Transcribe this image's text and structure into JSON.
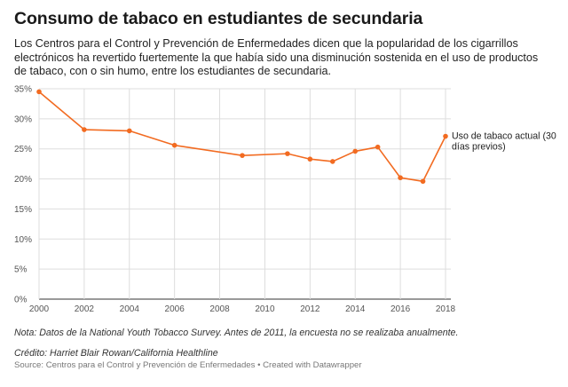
{
  "header": {
    "title": "Consumo de tabaco en estudiantes de secundaria",
    "description": "Los Centros para el Control y Prevención de Enfermedades dicen que la popularidad de los cigarrillos electrónicos ha revertido fuertemente la que había sido una disminución sostenida en el uso de productos de tabaco, con o sin humo, entre los estudiantes de secundaria."
  },
  "footer": {
    "note": "Nota: Datos de la National Youth Tobacco Survey. Antes de 2011, la encuesta no se realizaba anualmente.",
    "credit": "Crédito: Harriet Blair Rowan/California Healthline",
    "source": "Source: Centros para el Control y Prevención de Enfermedades • Created with Datawrapper"
  },
  "chart_data": {
    "type": "line",
    "x": [
      2000,
      2002,
      2004,
      2006,
      2009,
      2011,
      2012,
      2013,
      2014,
      2015,
      2016,
      2017,
      2018
    ],
    "series": [
      {
        "name": "Uso de tabaco actual (30 días previos)",
        "name_lines": [
          "Uso de tabaco actual (30",
          "días previos)"
        ],
        "values": [
          34.5,
          28.2,
          28.0,
          25.6,
          23.9,
          24.2,
          23.3,
          22.9,
          24.6,
          25.3,
          20.2,
          19.6,
          27.1
        ],
        "color": "#f26b21"
      }
    ],
    "xlim": [
      2000,
      2018
    ],
    "ylim": [
      0,
      35
    ],
    "x_ticks": [
      "2000",
      "2002",
      "2004",
      "2006",
      "2008",
      "2010",
      "2012",
      "2014",
      "2016",
      "2018"
    ],
    "y_ticks": [
      "0%",
      "5%",
      "10%",
      "15%",
      "20%",
      "25%",
      "30%",
      "35%"
    ],
    "grid": true,
    "gridline_color": "#dddddd",
    "legend": "inline-right"
  }
}
